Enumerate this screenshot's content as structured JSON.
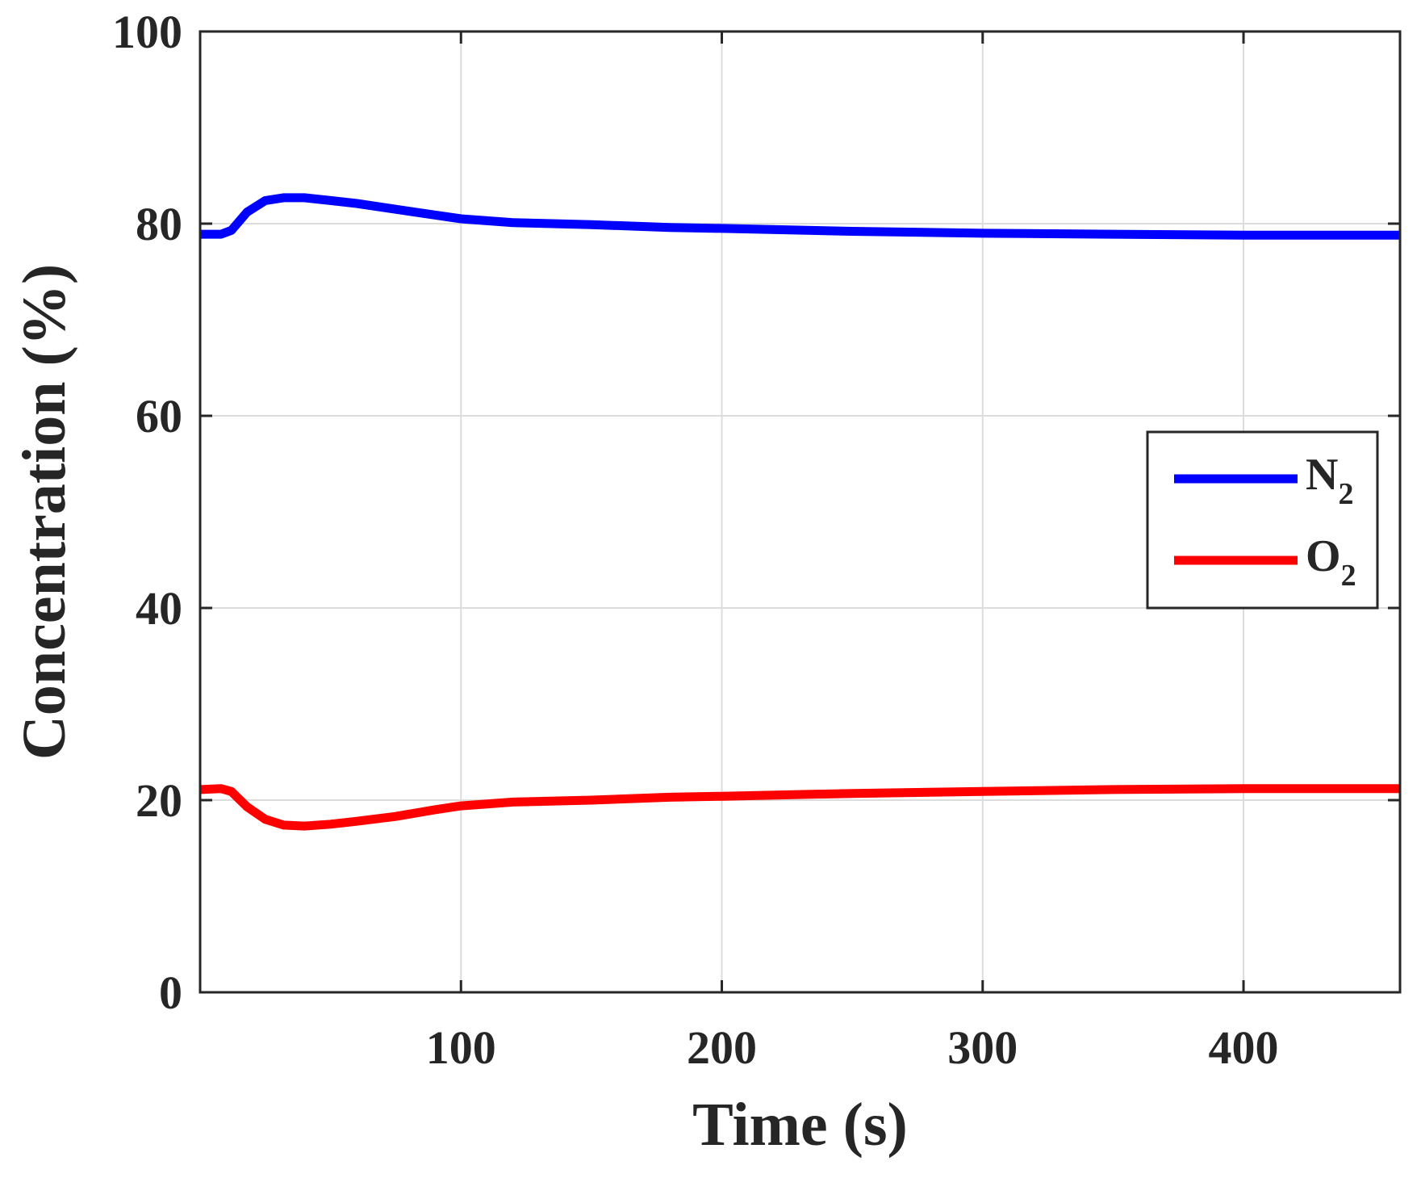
{
  "chart_data": {
    "type": "line",
    "xlabel": "Time (s)",
    "ylabel": "Concentration (%)",
    "xlim": [
      0,
      460
    ],
    "ylim": [
      0,
      100
    ],
    "xticks": [
      100,
      200,
      300,
      400
    ],
    "yticks": [
      0,
      20,
      40,
      60,
      80,
      100
    ],
    "grid": true,
    "legend_position": "right-middle",
    "series": [
      {
        "name": "N",
        "name_subscript": "2",
        "color": "#0000ff",
        "x": [
          0,
          8,
          12,
          18,
          25,
          32,
          40,
          50,
          60,
          75,
          90,
          100,
          120,
          150,
          180,
          200,
          250,
          300,
          350,
          400,
          460
        ],
        "values": [
          78.9,
          78.9,
          79.3,
          81.2,
          82.4,
          82.7,
          82.7,
          82.4,
          82.1,
          81.5,
          80.9,
          80.5,
          80.1,
          79.9,
          79.6,
          79.5,
          79.2,
          79.0,
          78.9,
          78.8,
          78.8
        ]
      },
      {
        "name": "O",
        "name_subscript": "2",
        "color": "#ff0000",
        "x": [
          0,
          8,
          12,
          18,
          25,
          32,
          40,
          50,
          60,
          75,
          90,
          100,
          120,
          150,
          180,
          200,
          250,
          300,
          350,
          400,
          460
        ],
        "values": [
          21.1,
          21.2,
          20.9,
          19.3,
          18.0,
          17.4,
          17.3,
          17.5,
          17.8,
          18.3,
          19.0,
          19.4,
          19.8,
          20.0,
          20.3,
          20.4,
          20.7,
          20.9,
          21.1,
          21.2,
          21.2
        ]
      }
    ]
  }
}
